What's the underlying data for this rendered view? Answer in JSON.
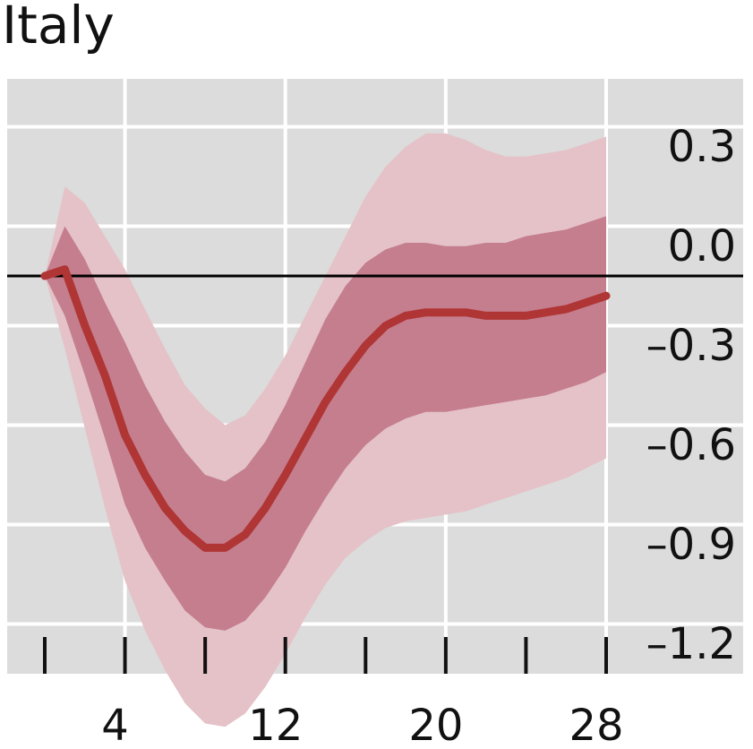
{
  "chart_data": {
    "type": "line",
    "title": "Italy",
    "xlabel": "",
    "ylabel": "",
    "xlim": [
      0,
      35
    ],
    "ylim": [
      -1.3,
      0.5
    ],
    "x_ticks": [
      4,
      12,
      20,
      28
    ],
    "x_tick_labels": [
      "4",
      "12",
      "20",
      "28"
    ],
    "x_minor_ticks": [
      0,
      4,
      8,
      12,
      16,
      20,
      24,
      28
    ],
    "y_ticks": [
      0.3,
      0.0,
      -0.3,
      -0.6,
      -0.9,
      -1.2
    ],
    "y_tick_labels": [
      "0.3",
      "0.0",
      "–0.3",
      "–0.6",
      "–0.9",
      "–1.2"
    ],
    "y_axis_side": "right",
    "grid": true,
    "zero_line": true,
    "colors": {
      "panel": "#dcdcdc",
      "grid": "#ffffff",
      "line": "#b03535",
      "inner_band": "#c47e8e",
      "outer_band": "#e4c2c8",
      "zero_line": "#000000"
    },
    "x": [
      0,
      1,
      2,
      3,
      4,
      5,
      6,
      7,
      8,
      9,
      10,
      11,
      12,
      13,
      14,
      15,
      16,
      17,
      18,
      19,
      20,
      21,
      22,
      23,
      24,
      25,
      26,
      27,
      28
    ],
    "series": [
      {
        "role": "median",
        "values": [
          0.0,
          0.02,
          -0.15,
          -0.3,
          -0.48,
          -0.6,
          -0.7,
          -0.77,
          -0.82,
          -0.82,
          -0.78,
          -0.7,
          -0.6,
          -0.49,
          -0.38,
          -0.29,
          -0.21,
          -0.15,
          -0.12,
          -0.11,
          -0.11,
          -0.11,
          -0.12,
          -0.12,
          -0.12,
          -0.11,
          -0.1,
          -0.08,
          -0.06
        ]
      },
      {
        "role": "inner_band_upper",
        "values": [
          0.0,
          0.15,
          0.05,
          -0.08,
          -0.2,
          -0.33,
          -0.44,
          -0.53,
          -0.6,
          -0.62,
          -0.58,
          -0.5,
          -0.39,
          -0.26,
          -0.13,
          -0.03,
          0.04,
          0.08,
          0.1,
          0.1,
          0.09,
          0.09,
          0.1,
          0.1,
          0.12,
          0.13,
          0.14,
          0.16,
          0.18
        ]
      },
      {
        "role": "inner_band_lower",
        "values": [
          0.0,
          -0.12,
          -0.3,
          -0.49,
          -0.69,
          -0.82,
          -0.92,
          -1.01,
          -1.06,
          -1.07,
          -1.04,
          -0.97,
          -0.88,
          -0.77,
          -0.67,
          -0.58,
          -0.51,
          -0.46,
          -0.43,
          -0.41,
          -0.41,
          -0.4,
          -0.39,
          -0.38,
          -0.37,
          -0.36,
          -0.34,
          -0.32,
          -0.29
        ]
      },
      {
        "role": "outer_band_upper",
        "values": [
          0.0,
          0.27,
          0.22,
          0.12,
          0.02,
          -0.1,
          -0.22,
          -0.33,
          -0.4,
          -0.45,
          -0.42,
          -0.34,
          -0.24,
          -0.12,
          0.0,
          0.12,
          0.24,
          0.33,
          0.39,
          0.43,
          0.43,
          0.41,
          0.38,
          0.36,
          0.36,
          0.37,
          0.38,
          0.4,
          0.42
        ]
      },
      {
        "role": "outer_band_lower",
        "values": [
          0.0,
          -0.22,
          -0.46,
          -0.7,
          -0.92,
          -1.07,
          -1.19,
          -1.29,
          -1.35,
          -1.36,
          -1.32,
          -1.24,
          -1.14,
          -1.03,
          -0.93,
          -0.85,
          -0.8,
          -0.76,
          -0.74,
          -0.73,
          -0.72,
          -0.71,
          -0.69,
          -0.67,
          -0.65,
          -0.63,
          -0.61,
          -0.58,
          -0.55
        ]
      }
    ]
  }
}
